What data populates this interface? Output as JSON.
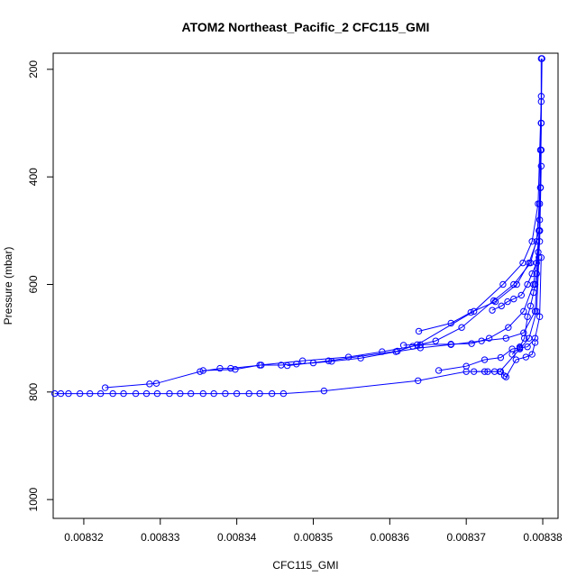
{
  "chart_data": {
    "type": "scatter",
    "title": "ATOM2 Northeast_Pacific_2 CFC115_GMI",
    "xlabel": "CFC115_GMI",
    "ylabel": "Pressure (mbar)",
    "xlim": [
      0.008316,
      0.008382
    ],
    "ylim": [
      1035,
      170
    ],
    "y_inverted": true,
    "x_ticks": [
      "0.00832",
      "0.00833",
      "0.00834",
      "0.00835",
      "0.00836",
      "0.00837",
      "0.00838"
    ],
    "x_tick_values": [
      0.00832,
      0.00833,
      0.00834,
      0.00835,
      0.00836,
      0.00837,
      0.00838
    ],
    "y_ticks": [
      "200",
      "400",
      "600",
      "800",
      "1000"
    ],
    "y_tick_values": [
      200,
      400,
      600,
      800,
      1000
    ],
    "grid": false,
    "color": "#0000ff",
    "marker": "open-circle",
    "series": [
      {
        "x": [
          0.0083162,
          0.008317,
          0.008318,
          0.0083195,
          0.0083208,
          0.0083222,
          0.0083238,
          0.0083252,
          0.0083268,
          0.0083282,
          0.0083296,
          0.0083312,
          0.0083326,
          0.008334,
          0.0083356,
          0.008337,
          0.0083385,
          0.00834,
          0.0083416,
          0.008343,
          0.0083446,
          0.0083461,
          0.0083514,
          0.0083637,
          0.00837,
          0.0083728,
          0.0083744,
          0.008377,
          0.0083782,
          0.0083792,
          0.0083795,
          0.0083796,
          0.0083797,
          0.0083798,
          0.0083798
        ],
        "y": [
          803,
          803,
          803,
          803,
          803,
          803,
          803,
          803,
          803,
          803,
          803,
          803,
          803,
          803,
          803,
          803,
          803,
          803,
          803,
          803,
          803,
          803,
          798,
          779,
          762,
          762,
          762,
          720,
          700,
          650,
          550,
          450,
          350,
          250,
          180
        ]
      },
      {
        "x": [
          0.0083228,
          0.0083286,
          0.0083295,
          0.0083352,
          0.0083378,
          0.0083392,
          0.0083432,
          0.0083458,
          0.0083478,
          0.00835,
          0.0083524,
          0.0083562,
          0.0083608,
          0.008364,
          0.008368,
          0.008372,
          0.0083752,
          0.0083775,
          0.008379,
          0.0083796,
          0.0083798
        ],
        "y": [
          792,
          785,
          784,
          762,
          756,
          756,
          750,
          750,
          748,
          746,
          743,
          737,
          725,
          718,
          712,
          705,
          700,
          690,
          650,
          520,
          380
        ]
      },
      {
        "x": [
          0.0083356,
          0.0083398,
          0.008343,
          0.0083486,
          0.0083546,
          0.008359,
          0.008363,
          0.008366,
          0.0083694,
          0.0083736,
          0.0083762,
          0.0083784,
          0.0083795,
          0.0083798
        ],
        "y": [
          760,
          758,
          750,
          742,
          735,
          725,
          715,
          705,
          680,
          630,
          600,
          560,
          500,
          300
        ]
      },
      {
        "x": [
          0.0083466,
          0.008352,
          0.008361,
          0.0083636,
          0.008371,
          0.0083748,
          0.0083774,
          0.0083786,
          0.0083794,
          0.0083798
        ],
        "y": [
          751,
          742,
          724,
          712,
          650,
          600,
          560,
          520,
          450,
          260
        ]
      },
      {
        "x": [
          0.0083618,
          0.008364,
          0.008368,
          0.0083707,
          0.008373,
          0.0083755,
          0.0083775,
          0.0083788,
          0.0083796,
          0.0083798
        ],
        "y": [
          713,
          712,
          711,
          710,
          700,
          680,
          650,
          600,
          500,
          350
        ]
      },
      {
        "x": [
          0.0083638,
          0.008368,
          0.0083706,
          0.0083738,
          0.0083766,
          0.0083782,
          0.0083792,
          0.0083797
        ],
        "y": [
          687,
          672,
          652,
          632,
          600,
          560,
          520,
          420
        ]
      },
      {
        "x": [
          0.0083664,
          0.00837,
          0.0083724,
          0.0083745,
          0.008376,
          0.008377,
          0.008378,
          0.008379,
          0.0083796,
          0.0083798
        ],
        "y": [
          760,
          752,
          740,
          736,
          720,
          718,
          716,
          700,
          660,
          550
        ]
      },
      {
        "x": [
          0.008371,
          0.0083724,
          0.0083737,
          0.0083745,
          0.008375,
          0.0083752,
          0.0083765,
          0.0083778,
          0.0083786,
          0.008379
        ],
        "y": [
          762,
          762,
          762,
          762,
          770,
          772,
          740,
          735,
          730,
          708
        ]
      },
      {
        "x": [
          0.0083734,
          0.0083746,
          0.0083754,
          0.0083762,
          0.0083772,
          0.008378,
          0.0083786,
          0.0083792,
          0.0083796,
          0.0083797,
          0.0083798
        ],
        "y": [
          648,
          640,
          632,
          627,
          620,
          600,
          580,
          560,
          500,
          420,
          300
        ]
      },
      {
        "x": [
          0.008376,
          0.008377,
          0.0083776,
          0.008378,
          0.0083784,
          0.0083788,
          0.008379,
          0.0083792,
          0.0083794,
          0.0083796,
          0.0083797,
          0.0083798,
          0.0083799
        ],
        "y": [
          730,
          716,
          700,
          660,
          640,
          615,
          600,
          580,
          540,
          480,
          420,
          300,
          180
        ]
      }
    ]
  }
}
